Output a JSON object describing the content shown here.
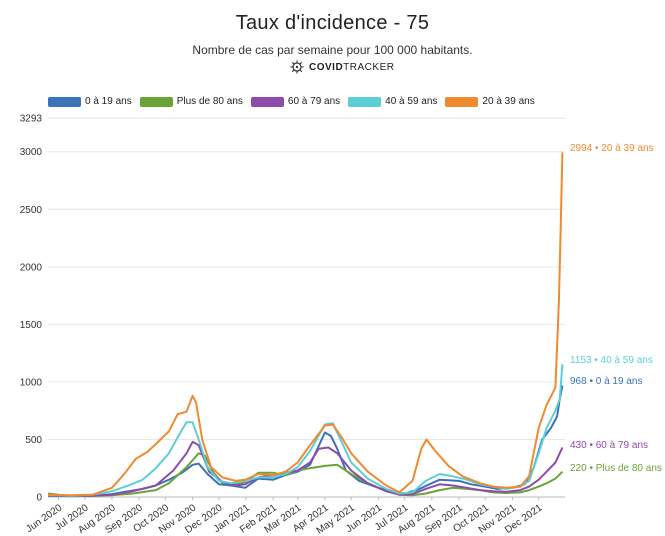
{
  "header": {
    "title": "Taux d'incidence - 75",
    "subtitle": "Nombre de cas par semaine pour 100 000 habitants.",
    "brand_bold": "COVID",
    "brand_rest": "TRACKER"
  },
  "chart_data": {
    "type": "line",
    "title": "Taux d'incidence - 75",
    "subtitle": "Nombre de cas par semaine pour 100 000 habitants.",
    "xlabel": "",
    "ylabel": "",
    "ylim": [
      0,
      3293
    ],
    "y_ticks": [
      0,
      500,
      1000,
      1500,
      2000,
      2500,
      3000,
      3293
    ],
    "grid": true,
    "legend_position": "top-left",
    "x_tick_labels": [
      "Jun 2020",
      "Jul 2020",
      "Aug 2020",
      "Sep 2020",
      "Oct 2020",
      "Nov 2020",
      "Dec 2020",
      "Jan 2021",
      "Feb 2021",
      "Mar 2021",
      "Apr 2021",
      "May 2021",
      "Jun 2021",
      "Jul 2021",
      "Aug 2021",
      "Sep 2021",
      "Oct 2021",
      "Nov 2021",
      "Dec 2021"
    ],
    "x_range": [
      "2020-05-20",
      "2021-12-31"
    ],
    "series": [
      {
        "name": "0 à 19 ans",
        "color": "#3c73b8",
        "end_label": "968 • 0 à 19 ans",
        "points": [
          [
            "2020-05-20",
            10
          ],
          [
            "2020-06-15",
            8
          ],
          [
            "2020-07-10",
            10
          ],
          [
            "2020-08-01",
            25
          ],
          [
            "2020-08-20",
            50
          ],
          [
            "2020-09-05",
            70
          ],
          [
            "2020-09-20",
            100
          ],
          [
            "2020-10-05",
            150
          ],
          [
            "2020-10-20",
            210
          ],
          [
            "2020-11-01",
            280
          ],
          [
            "2020-11-08",
            290
          ],
          [
            "2020-11-18",
            200
          ],
          [
            "2020-12-01",
            110
          ],
          [
            "2020-12-15",
            100
          ],
          [
            "2020-12-31",
            80
          ],
          [
            "2021-01-15",
            160
          ],
          [
            "2021-02-01",
            150
          ],
          [
            "2021-02-15",
            190
          ],
          [
            "2021-03-01",
            220
          ],
          [
            "2021-03-15",
            280
          ],
          [
            "2021-04-01",
            560
          ],
          [
            "2021-04-08",
            530
          ],
          [
            "2021-04-15",
            420
          ],
          [
            "2021-04-25",
            230
          ],
          [
            "2021-05-10",
            140
          ],
          [
            "2021-06-01",
            80
          ],
          [
            "2021-06-20",
            40
          ],
          [
            "2021-07-01",
            30
          ],
          [
            "2021-07-15",
            60
          ],
          [
            "2021-08-01",
            120
          ],
          [
            "2021-08-10",
            150
          ],
          [
            "2021-09-01",
            140
          ],
          [
            "2021-09-15",
            110
          ],
          [
            "2021-10-01",
            90
          ],
          [
            "2021-10-15",
            70
          ],
          [
            "2021-11-01",
            80
          ],
          [
            "2021-11-15",
            110
          ],
          [
            "2021-11-25",
            250
          ],
          [
            "2021-12-05",
            500
          ],
          [
            "2021-12-15",
            600
          ],
          [
            "2021-12-22",
            700
          ],
          [
            "2021-12-25",
            850
          ],
          [
            "2021-12-28",
            968
          ]
        ]
      },
      {
        "name": "Plus de 80 ans",
        "color": "#6aa336",
        "end_label": "220 • Plus de 80 ans",
        "points": [
          [
            "2020-05-20",
            30
          ],
          [
            "2020-06-10",
            10
          ],
          [
            "2020-07-10",
            10
          ],
          [
            "2020-08-01",
            15
          ],
          [
            "2020-08-25",
            30
          ],
          [
            "2020-09-20",
            60
          ],
          [
            "2020-10-05",
            120
          ],
          [
            "2020-10-25",
            260
          ],
          [
            "2020-11-08",
            380
          ],
          [
            "2020-11-15",
            360
          ],
          [
            "2020-11-25",
            210
          ],
          [
            "2020-12-05",
            120
          ],
          [
            "2020-12-20",
            110
          ],
          [
            "2020-12-31",
            130
          ],
          [
            "2021-01-15",
            210
          ],
          [
            "2021-02-01",
            210
          ],
          [
            "2021-02-15",
            190
          ],
          [
            "2021-03-01",
            230
          ],
          [
            "2021-03-15",
            250
          ],
          [
            "2021-04-01",
            270
          ],
          [
            "2021-04-15",
            280
          ],
          [
            "2021-05-01",
            200
          ],
          [
            "2021-05-20",
            120
          ],
          [
            "2021-06-10",
            50
          ],
          [
            "2021-06-25",
            20
          ],
          [
            "2021-07-10",
            15
          ],
          [
            "2021-07-25",
            30
          ],
          [
            "2021-08-10",
            60
          ],
          [
            "2021-08-25",
            80
          ],
          [
            "2021-09-10",
            70
          ],
          [
            "2021-09-25",
            60
          ],
          [
            "2021-10-10",
            40
          ],
          [
            "2021-10-25",
            35
          ],
          [
            "2021-11-10",
            40
          ],
          [
            "2021-11-20",
            60
          ],
          [
            "2021-12-01",
            90
          ],
          [
            "2021-12-10",
            120
          ],
          [
            "2021-12-20",
            160
          ],
          [
            "2021-12-28",
            220
          ]
        ]
      },
      {
        "name": "60 à 79 ans",
        "color": "#8e4bab",
        "end_label": "430 • 60 à 79 ans",
        "points": [
          [
            "2020-05-20",
            15
          ],
          [
            "2020-06-15",
            10
          ],
          [
            "2020-07-10",
            10
          ],
          [
            "2020-08-01",
            20
          ],
          [
            "2020-08-25",
            50
          ],
          [
            "2020-09-20",
            100
          ],
          [
            "2020-10-10",
            230
          ],
          [
            "2020-10-25",
            380
          ],
          [
            "2020-11-01",
            480
          ],
          [
            "2020-11-08",
            450
          ],
          [
            "2020-11-20",
            220
          ],
          [
            "2020-12-05",
            130
          ],
          [
            "2020-12-20",
            100
          ],
          [
            "2020-12-31",
            110
          ],
          [
            "2021-01-15",
            170
          ],
          [
            "2021-02-01",
            190
          ],
          [
            "2021-02-15",
            210
          ],
          [
            "2021-03-01",
            230
          ],
          [
            "2021-03-15",
            300
          ],
          [
            "2021-03-25",
            420
          ],
          [
            "2021-04-05",
            430
          ],
          [
            "2021-04-15",
            380
          ],
          [
            "2021-05-01",
            230
          ],
          [
            "2021-05-20",
            120
          ],
          [
            "2021-06-10",
            50
          ],
          [
            "2021-06-25",
            20
          ],
          [
            "2021-07-10",
            25
          ],
          [
            "2021-07-25",
            70
          ],
          [
            "2021-08-10",
            110
          ],
          [
            "2021-08-25",
            100
          ],
          [
            "2021-09-10",
            80
          ],
          [
            "2021-09-25",
            60
          ],
          [
            "2021-10-10",
            50
          ],
          [
            "2021-10-25",
            45
          ],
          [
            "2021-11-10",
            60
          ],
          [
            "2021-11-20",
            90
          ],
          [
            "2021-12-01",
            150
          ],
          [
            "2021-12-10",
            220
          ],
          [
            "2021-12-20",
            300
          ],
          [
            "2021-12-28",
            430
          ]
        ]
      },
      {
        "name": "40 à 59 ans",
        "color": "#5ccfd6",
        "end_label": "1153 • 40 à 59 ans",
        "points": [
          [
            "2020-05-20",
            20
          ],
          [
            "2020-06-15",
            10
          ],
          [
            "2020-07-10",
            20
          ],
          [
            "2020-08-01",
            50
          ],
          [
            "2020-08-20",
            100
          ],
          [
            "2020-09-05",
            150
          ],
          [
            "2020-09-20",
            250
          ],
          [
            "2020-10-05",
            380
          ],
          [
            "2020-10-15",
            520
          ],
          [
            "2020-10-25",
            650
          ],
          [
            "2020-11-01",
            650
          ],
          [
            "2020-11-08",
            500
          ],
          [
            "2020-11-18",
            260
          ],
          [
            "2020-12-01",
            140
          ],
          [
            "2020-12-15",
            120
          ],
          [
            "2020-12-31",
            140
          ],
          [
            "2021-01-15",
            170
          ],
          [
            "2021-02-01",
            170
          ],
          [
            "2021-02-15",
            200
          ],
          [
            "2021-03-01",
            260
          ],
          [
            "2021-03-15",
            400
          ],
          [
            "2021-04-01",
            630
          ],
          [
            "2021-04-10",
            640
          ],
          [
            "2021-04-20",
            480
          ],
          [
            "2021-05-01",
            300
          ],
          [
            "2021-05-20",
            160
          ],
          [
            "2021-06-10",
            70
          ],
          [
            "2021-06-25",
            30
          ],
          [
            "2021-07-10",
            40
          ],
          [
            "2021-07-25",
            140
          ],
          [
            "2021-08-10",
            200
          ],
          [
            "2021-08-25",
            180
          ],
          [
            "2021-09-10",
            150
          ],
          [
            "2021-09-25",
            110
          ],
          [
            "2021-10-10",
            90
          ],
          [
            "2021-10-25",
            70
          ],
          [
            "2021-11-10",
            90
          ],
          [
            "2021-11-20",
            140
          ],
          [
            "2021-12-01",
            380
          ],
          [
            "2021-12-10",
            600
          ],
          [
            "2021-12-20",
            750
          ],
          [
            "2021-12-25",
            850
          ],
          [
            "2021-12-28",
            1153
          ]
        ]
      },
      {
        "name": "20 à 39 ans",
        "color": "#f08a30",
        "end_label": "2994 • 20 à 39 ans",
        "points": [
          [
            "2020-05-20",
            20
          ],
          [
            "2020-06-15",
            15
          ],
          [
            "2020-07-10",
            20
          ],
          [
            "2020-08-01",
            80
          ],
          [
            "2020-08-15",
            200
          ],
          [
            "2020-08-28",
            330
          ],
          [
            "2020-09-10",
            390
          ],
          [
            "2020-09-20",
            460
          ],
          [
            "2020-10-05",
            570
          ],
          [
            "2020-10-15",
            720
          ],
          [
            "2020-10-25",
            740
          ],
          [
            "2020-11-01",
            880
          ],
          [
            "2020-11-05",
            820
          ],
          [
            "2020-11-12",
            500
          ],
          [
            "2020-11-22",
            260
          ],
          [
            "2020-12-05",
            170
          ],
          [
            "2020-12-20",
            140
          ],
          [
            "2020-12-31",
            150
          ],
          [
            "2021-01-15",
            200
          ],
          [
            "2021-02-01",
            190
          ],
          [
            "2021-02-15",
            220
          ],
          [
            "2021-03-01",
            300
          ],
          [
            "2021-03-15",
            450
          ],
          [
            "2021-04-01",
            620
          ],
          [
            "2021-04-10",
            630
          ],
          [
            "2021-04-20",
            520
          ],
          [
            "2021-05-01",
            380
          ],
          [
            "2021-05-20",
            220
          ],
          [
            "2021-06-10",
            100
          ],
          [
            "2021-06-25",
            40
          ],
          [
            "2021-07-10",
            140
          ],
          [
            "2021-07-20",
            420
          ],
          [
            "2021-07-26",
            500
          ],
          [
            "2021-08-05",
            400
          ],
          [
            "2021-08-20",
            270
          ],
          [
            "2021-09-05",
            180
          ],
          [
            "2021-09-25",
            120
          ],
          [
            "2021-10-10",
            90
          ],
          [
            "2021-10-25",
            80
          ],
          [
            "2021-11-10",
            90
          ],
          [
            "2021-11-20",
            180
          ],
          [
            "2021-12-01",
            600
          ],
          [
            "2021-12-10",
            800
          ],
          [
            "2021-12-20",
            950
          ],
          [
            "2021-12-24",
            1700
          ],
          [
            "2021-12-26",
            2300
          ],
          [
            "2021-12-28",
            2994
          ]
        ]
      }
    ]
  }
}
